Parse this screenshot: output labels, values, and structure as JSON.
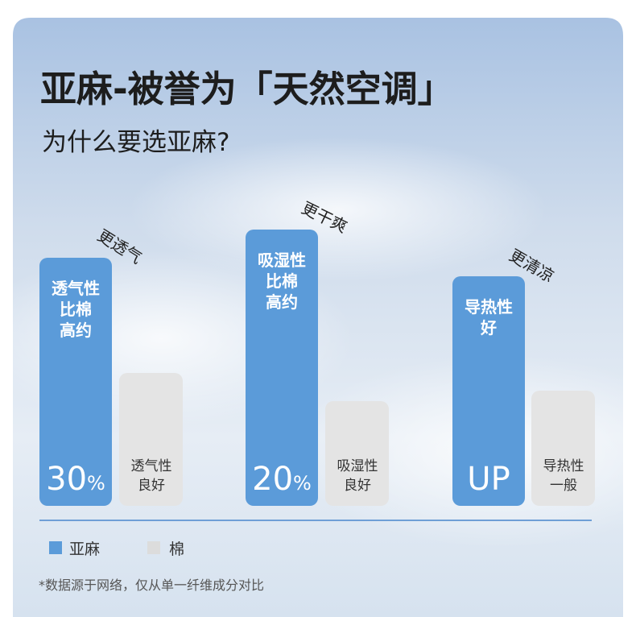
{
  "header": {
    "title": "亚麻-被誉为「天然空调」",
    "subtitle": "为什么要选亚麻?"
  },
  "groups": [
    {
      "label": "更透气",
      "linen_lines": [
        "透气性",
        "比棉",
        "高约"
      ],
      "linen_big": "30",
      "linen_unit": "%",
      "cotton_lines": [
        "透气性",
        "良好"
      ]
    },
    {
      "label": "更干爽",
      "linen_lines": [
        "吸湿性",
        "比棉",
        "高约"
      ],
      "linen_big": "20",
      "linen_unit": "%",
      "cotton_lines": [
        "吸湿性",
        "良好"
      ]
    },
    {
      "label": "更清凉",
      "linen_lines": [
        "导热性",
        "好"
      ],
      "linen_big": "UP",
      "cotton_lines": [
        "导热性",
        "一般"
      ]
    }
  ],
  "legend": [
    "亚麻",
    "棉"
  ],
  "footnote": "*数据源于网络，仅从单一纤维成分对比"
}
